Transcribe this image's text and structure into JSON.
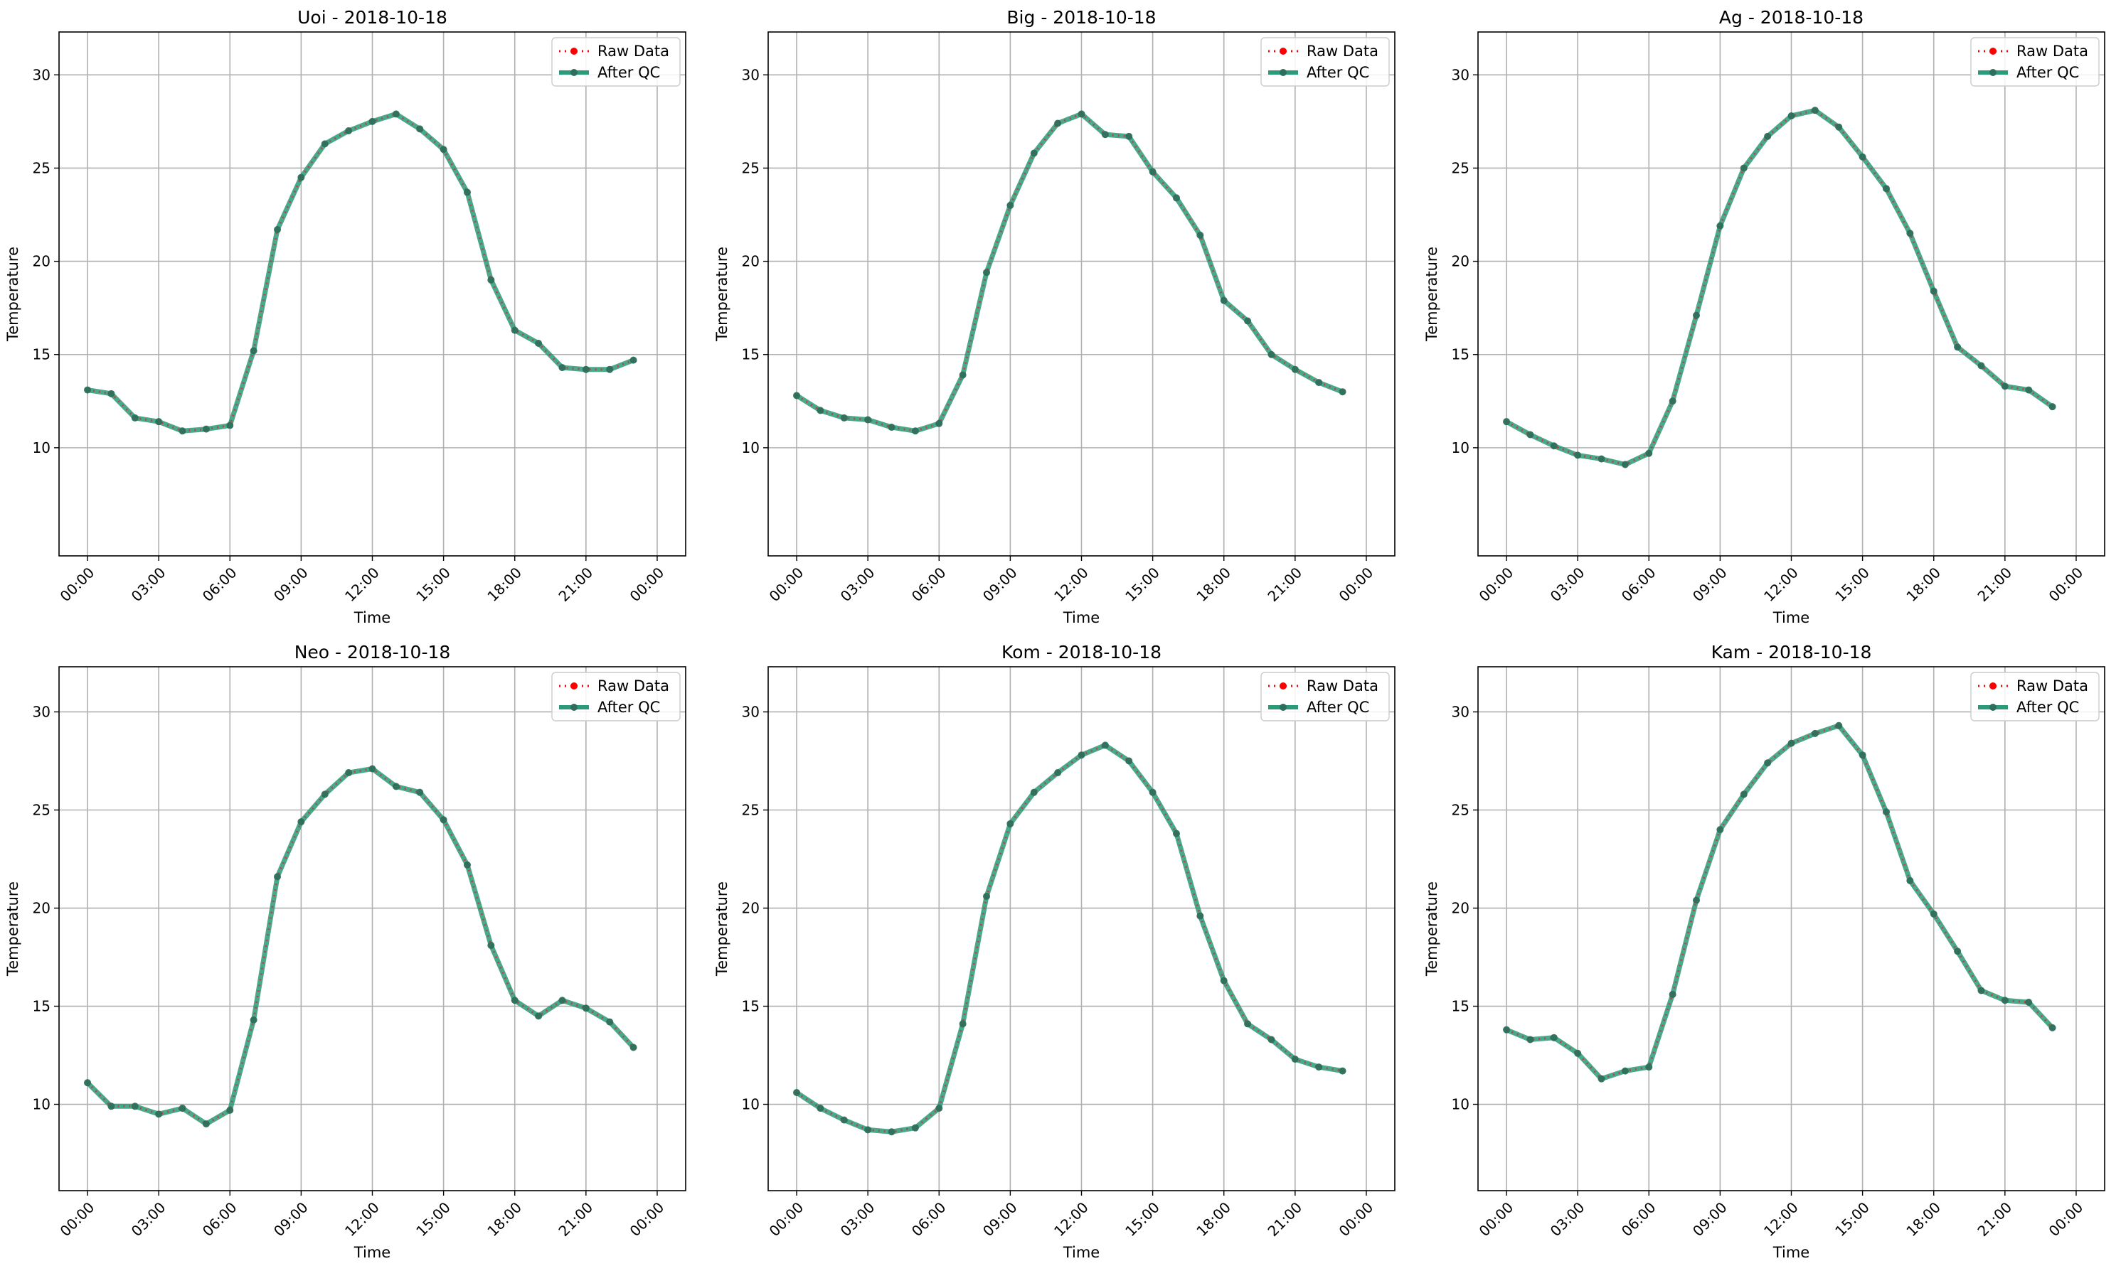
{
  "figure": {
    "background": "#ffffff",
    "raw_color": "#ff0000",
    "qc_color": "#2a9a78",
    "grid_color": "#b0b0b0"
  },
  "chart_data": [
    {
      "type": "line",
      "title": "Uoi - 2018-10-18",
      "xlabel": "Time",
      "ylabel": "Temperature",
      "xticks": [
        "00:00",
        "03:00",
        "06:00",
        "09:00",
        "12:00",
        "15:00",
        "18:00",
        "21:00",
        "00:00"
      ],
      "yticks": [
        10,
        15,
        20,
        25,
        30
      ],
      "xlim": [
        "2018-10-18 00:00",
        "2018-10-19 00:00"
      ],
      "ylim": [
        4.2,
        32.3
      ],
      "grid": true,
      "legend": "top-right",
      "x": [
        "00:00",
        "01:00",
        "02:00",
        "03:00",
        "04:00",
        "05:00",
        "06:00",
        "07:00",
        "08:00",
        "09:00",
        "10:00",
        "11:00",
        "12:00",
        "13:00",
        "14:00",
        "15:00",
        "16:00",
        "17:00",
        "18:00",
        "19:00",
        "20:00",
        "21:00",
        "22:00",
        "23:00"
      ],
      "series": [
        {
          "name": "Raw Data",
          "values": [
            13.1,
            12.9,
            11.6,
            11.4,
            10.9,
            11.0,
            11.2,
            15.2,
            21.7,
            24.5,
            26.3,
            27.0,
            27.5,
            27.9,
            27.1,
            26.0,
            23.7,
            19.0,
            16.3,
            15.6,
            14.3,
            14.2,
            14.2,
            14.7
          ]
        },
        {
          "name": "After QC",
          "values": [
            13.1,
            12.9,
            11.6,
            11.4,
            10.9,
            11.0,
            11.2,
            15.2,
            21.7,
            24.5,
            26.3,
            27.0,
            27.5,
            27.9,
            27.1,
            26.0,
            23.7,
            19.0,
            16.3,
            15.6,
            14.3,
            14.2,
            14.2,
            14.7
          ]
        }
      ]
    },
    {
      "type": "line",
      "title": "Big - 2018-10-18",
      "xlabel": "Time",
      "ylabel": "Temperature",
      "xticks": [
        "00:00",
        "03:00",
        "06:00",
        "09:00",
        "12:00",
        "15:00",
        "18:00",
        "21:00",
        "00:00"
      ],
      "yticks": [
        10,
        15,
        20,
        25,
        30
      ],
      "xlim": [
        "2018-10-18 00:00",
        "2018-10-19 00:00"
      ],
      "ylim": [
        4.2,
        32.3
      ],
      "grid": true,
      "legend": "top-right",
      "x": [
        "00:00",
        "01:00",
        "02:00",
        "03:00",
        "04:00",
        "05:00",
        "06:00",
        "07:00",
        "08:00",
        "09:00",
        "10:00",
        "11:00",
        "12:00",
        "13:00",
        "14:00",
        "15:00",
        "16:00",
        "17:00",
        "18:00",
        "19:00",
        "20:00",
        "21:00",
        "22:00",
        "23:00"
      ],
      "series": [
        {
          "name": "Raw Data",
          "values": [
            12.8,
            12.0,
            11.6,
            11.5,
            11.1,
            10.9,
            11.3,
            13.9,
            19.4,
            23.0,
            25.8,
            27.4,
            27.9,
            26.8,
            26.7,
            24.8,
            23.4,
            21.4,
            17.9,
            16.8,
            15.0,
            14.2,
            13.5,
            13.0
          ]
        },
        {
          "name": "After QC",
          "values": [
            12.8,
            12.0,
            11.6,
            11.5,
            11.1,
            10.9,
            11.3,
            13.9,
            19.4,
            23.0,
            25.8,
            27.4,
            27.9,
            26.8,
            26.7,
            24.8,
            23.4,
            21.4,
            17.9,
            16.8,
            15.0,
            14.2,
            13.5,
            13.0
          ]
        }
      ]
    },
    {
      "type": "line",
      "title": "Ag - 2018-10-18",
      "xlabel": "Time",
      "ylabel": "Temperature",
      "xticks": [
        "00:00",
        "03:00",
        "06:00",
        "09:00",
        "12:00",
        "15:00",
        "18:00",
        "21:00",
        "00:00"
      ],
      "yticks": [
        10,
        15,
        20,
        25,
        30
      ],
      "xlim": [
        "2018-10-18 00:00",
        "2018-10-19 00:00"
      ],
      "ylim": [
        4.2,
        32.3
      ],
      "grid": true,
      "legend": "top-right",
      "x": [
        "00:00",
        "01:00",
        "02:00",
        "03:00",
        "04:00",
        "05:00",
        "06:00",
        "07:00",
        "08:00",
        "09:00",
        "10:00",
        "11:00",
        "12:00",
        "13:00",
        "14:00",
        "15:00",
        "16:00",
        "17:00",
        "18:00",
        "19:00",
        "20:00",
        "21:00",
        "22:00",
        "23:00"
      ],
      "series": [
        {
          "name": "Raw Data",
          "values": [
            11.4,
            10.7,
            10.1,
            9.6,
            9.4,
            9.1,
            9.7,
            12.5,
            17.1,
            21.9,
            25.0,
            26.7,
            27.8,
            28.1,
            27.2,
            25.6,
            23.9,
            21.5,
            18.4,
            15.4,
            14.4,
            13.3,
            13.1,
            12.2
          ]
        },
        {
          "name": "After QC",
          "values": [
            11.4,
            10.7,
            10.1,
            9.6,
            9.4,
            9.1,
            9.7,
            12.5,
            17.1,
            21.9,
            25.0,
            26.7,
            27.8,
            28.1,
            27.2,
            25.6,
            23.9,
            21.5,
            18.4,
            15.4,
            14.4,
            13.3,
            13.1,
            12.2
          ]
        }
      ]
    },
    {
      "type": "line",
      "title": "Neo - 2018-10-18",
      "xlabel": "Time",
      "ylabel": "Temperature",
      "xticks": [
        "00:00",
        "03:00",
        "06:00",
        "09:00",
        "12:00",
        "15:00",
        "18:00",
        "21:00",
        "00:00"
      ],
      "yticks": [
        10,
        15,
        20,
        25,
        30
      ],
      "xlim": [
        "2018-10-18 00:00",
        "2018-10-19 00:00"
      ],
      "ylim": [
        5.6,
        32.3
      ],
      "grid": true,
      "legend": "top-right",
      "x": [
        "00:00",
        "01:00",
        "02:00",
        "03:00",
        "04:00",
        "05:00",
        "06:00",
        "07:00",
        "08:00",
        "09:00",
        "10:00",
        "11:00",
        "12:00",
        "13:00",
        "14:00",
        "15:00",
        "16:00",
        "17:00",
        "18:00",
        "19:00",
        "20:00",
        "21:00",
        "22:00",
        "23:00"
      ],
      "series": [
        {
          "name": "Raw Data",
          "values": [
            11.1,
            9.9,
            9.9,
            9.5,
            9.8,
            9.0,
            9.7,
            14.3,
            21.6,
            24.4,
            25.8,
            26.9,
            27.1,
            26.2,
            25.9,
            24.5,
            22.2,
            18.1,
            15.3,
            14.5,
            15.3,
            14.9,
            14.2,
            12.9
          ]
        },
        {
          "name": "After QC",
          "values": [
            11.1,
            9.9,
            9.9,
            9.5,
            9.8,
            9.0,
            9.7,
            14.3,
            21.6,
            24.4,
            25.8,
            26.9,
            27.1,
            26.2,
            25.9,
            24.5,
            22.2,
            18.1,
            15.3,
            14.5,
            15.3,
            14.9,
            14.2,
            12.9
          ]
        }
      ]
    },
    {
      "type": "line",
      "title": "Kom - 2018-10-18",
      "xlabel": "Time",
      "ylabel": "Temperature",
      "xticks": [
        "00:00",
        "03:00",
        "06:00",
        "09:00",
        "12:00",
        "15:00",
        "18:00",
        "21:00",
        "00:00"
      ],
      "yticks": [
        10,
        15,
        20,
        25,
        30
      ],
      "xlim": [
        "2018-10-18 00:00",
        "2018-10-19 00:00"
      ],
      "ylim": [
        5.6,
        32.3
      ],
      "grid": true,
      "legend": "top-right",
      "x": [
        "00:00",
        "01:00",
        "02:00",
        "03:00",
        "04:00",
        "05:00",
        "06:00",
        "07:00",
        "08:00",
        "09:00",
        "10:00",
        "11:00",
        "12:00",
        "13:00",
        "14:00",
        "15:00",
        "16:00",
        "17:00",
        "18:00",
        "19:00",
        "20:00",
        "21:00",
        "22:00",
        "23:00"
      ],
      "series": [
        {
          "name": "Raw Data",
          "values": [
            10.6,
            9.8,
            9.2,
            8.7,
            8.6,
            8.8,
            9.8,
            14.1,
            20.6,
            24.3,
            25.9,
            26.9,
            27.8,
            28.3,
            27.5,
            25.9,
            23.8,
            19.6,
            16.3,
            14.1,
            13.3,
            12.3,
            11.9,
            11.7
          ]
        },
        {
          "name": "After QC",
          "values": [
            10.6,
            9.8,
            9.2,
            8.7,
            8.6,
            8.8,
            9.8,
            14.1,
            20.6,
            24.3,
            25.9,
            26.9,
            27.8,
            28.3,
            27.5,
            25.9,
            23.8,
            19.6,
            16.3,
            14.1,
            13.3,
            12.3,
            11.9,
            11.7
          ]
        }
      ]
    },
    {
      "type": "line",
      "title": "Kam - 2018-10-18",
      "xlabel": "Time",
      "ylabel": "Temperature",
      "xticks": [
        "00:00",
        "03:00",
        "06:00",
        "09:00",
        "12:00",
        "15:00",
        "18:00",
        "21:00",
        "00:00"
      ],
      "yticks": [
        10,
        15,
        20,
        25,
        30
      ],
      "xlim": [
        "2018-10-18 00:00",
        "2018-10-19 00:00"
      ],
      "ylim": [
        5.6,
        32.3
      ],
      "grid": true,
      "legend": "top-right",
      "x": [
        "00:00",
        "01:00",
        "02:00",
        "03:00",
        "04:00",
        "05:00",
        "06:00",
        "07:00",
        "08:00",
        "09:00",
        "10:00",
        "11:00",
        "12:00",
        "13:00",
        "14:00",
        "15:00",
        "16:00",
        "17:00",
        "18:00",
        "19:00",
        "20:00",
        "21:00",
        "22:00",
        "23:00"
      ],
      "series": [
        {
          "name": "Raw Data",
          "values": [
            13.8,
            13.3,
            13.4,
            12.6,
            11.3,
            11.7,
            11.9,
            15.6,
            20.4,
            24.0,
            25.8,
            27.4,
            28.4,
            28.9,
            29.3,
            27.8,
            24.9,
            21.4,
            19.7,
            17.8,
            15.8,
            15.3,
            15.2,
            13.9
          ]
        },
        {
          "name": "After QC",
          "values": [
            13.8,
            13.3,
            13.4,
            12.6,
            11.3,
            11.7,
            11.9,
            15.6,
            20.4,
            24.0,
            25.8,
            27.4,
            28.4,
            28.9,
            29.3,
            27.8,
            24.9,
            21.4,
            19.7,
            17.8,
            15.8,
            15.3,
            15.2,
            13.9
          ]
        }
      ]
    }
  ]
}
